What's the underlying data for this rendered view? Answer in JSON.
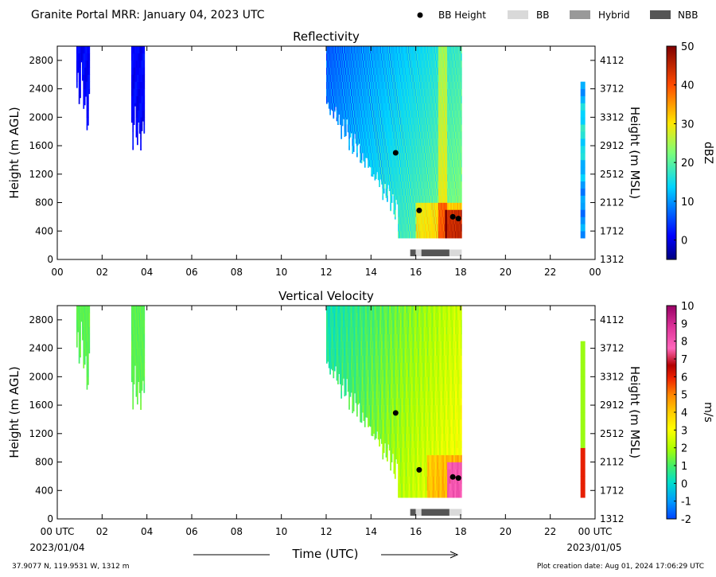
{
  "header": {
    "title": "Granite Portal MRR:  January 04, 2023 UTC"
  },
  "legend": {
    "items": [
      {
        "label": "BB Height",
        "marker": "dot",
        "color": "#000000"
      },
      {
        "label": "BB",
        "marker": "rect",
        "color": "#d9d9d9"
      },
      {
        "label": "Hybrid",
        "marker": "rect",
        "color": "#999999"
      },
      {
        "label": "NBB",
        "marker": "rect",
        "color": "#555555"
      }
    ]
  },
  "footer": {
    "location": "37.9077 N, 119.9531 W, 1312 m",
    "creation": "Plot creation date: Aug 01, 2024 17:06:29 UTC",
    "start_date": "2023/01/04",
    "end_date": "2023/01/05"
  },
  "chart_data": [
    {
      "type": "heatmap",
      "title": "Reflectivity",
      "xlabel": "",
      "ylabel": "Height (m AGL)",
      "ylabel_right": "Height (m MSL)",
      "x_ticks": [
        "00",
        "02",
        "04",
        "06",
        "08",
        "10",
        "12",
        "14",
        "16",
        "18",
        "20",
        "22",
        "00"
      ],
      "xlim": [
        0,
        24
      ],
      "ylim": [
        0,
        3000
      ],
      "y_ticks": [
        0,
        400,
        800,
        1200,
        1600,
        2000,
        2400,
        2800
      ],
      "y_ticks_right": [
        "1312",
        "1712",
        "2112",
        "2512",
        "2912",
        "3312",
        "3712",
        "4112"
      ],
      "colorbar": {
        "label": "dBZ",
        "range": [
          -5,
          50
        ],
        "ticks": [
          "0",
          "10",
          "20",
          "30",
          "40",
          "50"
        ],
        "tick_values": [
          0,
          10,
          20,
          30,
          40,
          50
        ],
        "colormap": "jet"
      },
      "bb_height": [
        {
          "x": 15.1,
          "y": 1500
        },
        {
          "x": 16.15,
          "y": 690
        },
        {
          "x": 17.65,
          "y": 600
        },
        {
          "x": 17.9,
          "y": 575
        }
      ],
      "bb_type_bar": [
        {
          "start": 15.75,
          "end": 16.0,
          "type": "NBB"
        },
        {
          "start": 16.0,
          "end": 16.25,
          "type": "BB"
        },
        {
          "start": 16.25,
          "end": 17.5,
          "type": "NBB"
        },
        {
          "start": 17.5,
          "end": 18.05,
          "type": "BB"
        }
      ]
    },
    {
      "type": "heatmap",
      "title": "Vertical Velocity",
      "xlabel": "Time (UTC)",
      "ylabel": "Height (m AGL)",
      "ylabel_right": "Height (m MSL)",
      "x_ticks": [
        "00 UTC",
        "02",
        "04",
        "06",
        "08",
        "10",
        "12",
        "14",
        "16",
        "18",
        "20",
        "22",
        "00 UTC"
      ],
      "xlim": [
        0,
        24
      ],
      "ylim": [
        0,
        3000
      ],
      "y_ticks": [
        0,
        400,
        800,
        1200,
        1600,
        2000,
        2400,
        2800
      ],
      "y_ticks_right": [
        "1312",
        "1712",
        "2112",
        "2512",
        "2912",
        "3312",
        "3712",
        "4112"
      ],
      "colorbar": {
        "label": "m/s",
        "range": [
          -2,
          10
        ],
        "ticks": [
          "-2",
          "-1",
          "0",
          "1",
          "2",
          "3",
          "4",
          "5",
          "6",
          "7",
          "8",
          "9",
          "10"
        ],
        "tick_values": [
          -2,
          -1,
          0,
          1,
          2,
          3,
          4,
          5,
          6,
          7,
          8,
          9,
          10
        ],
        "colormap": "velocity"
      },
      "bb_height": [
        {
          "x": 15.1,
          "y": 1490
        },
        {
          "x": 16.15,
          "y": 690
        },
        {
          "x": 17.65,
          "y": 590
        },
        {
          "x": 17.9,
          "y": 575
        }
      ],
      "bb_type_bar": [
        {
          "start": 15.75,
          "end": 16.0,
          "type": "NBB"
        },
        {
          "start": 16.0,
          "end": 16.25,
          "type": "BB"
        },
        {
          "start": 16.25,
          "end": 17.5,
          "type": "NBB"
        },
        {
          "start": 17.5,
          "end": 18.05,
          "type": "BB"
        }
      ]
    }
  ]
}
